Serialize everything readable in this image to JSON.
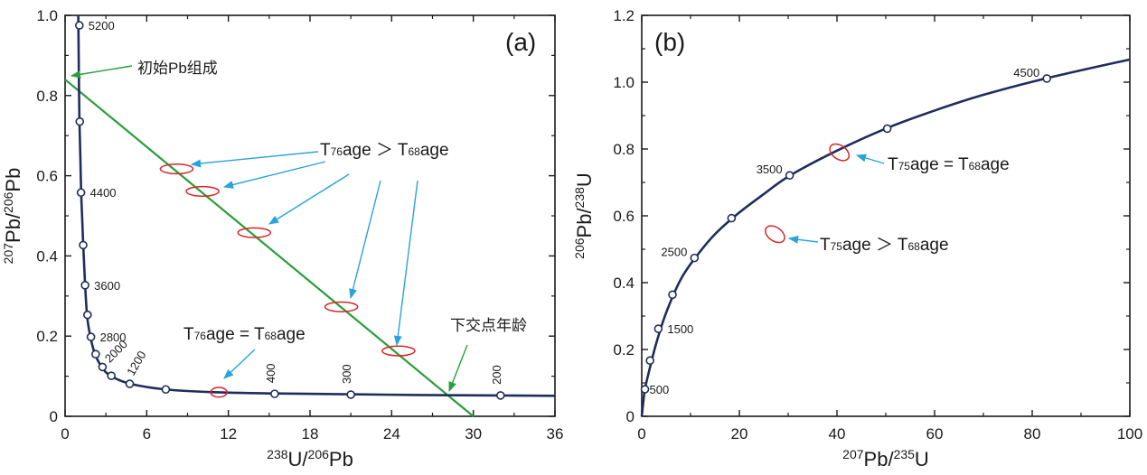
{
  "chart_data": [
    {
      "type": "line",
      "panel_label": "(a)",
      "xlabel": {
        "sup1": "238",
        "main1": "U/",
        "sup2": "206",
        "main2": "Pb"
      },
      "ylabel": {
        "sup1": "207",
        "main1": "Pb/",
        "sup2": "206",
        "main2": "Pb"
      },
      "xlim": [
        0,
        36
      ],
      "ylim": [
        0,
        1.0
      ],
      "xticks": [
        0,
        6,
        12,
        18,
        24,
        30,
        36
      ],
      "yticks": [
        0,
        0.2,
        0.4,
        0.6,
        0.8,
        1.0
      ],
      "ytick_labels": [
        "0",
        "0.2",
        "0.4",
        "0.6",
        "0.8",
        "1.0"
      ],
      "colors": {
        "concordia": "#1f2d5c",
        "discordia": "#2a9d3a",
        "ellipse": "#d62728",
        "arrow_blue": "#29a3db",
        "arrow_green": "#2a9d3a"
      },
      "concordia_curve": [
        [
          0.97,
          1.0
        ],
        [
          0.98,
          0.97
        ],
        [
          1.0,
          0.9
        ],
        [
          1.03,
          0.8
        ],
        [
          1.06,
          0.73
        ],
        [
          1.12,
          0.65
        ],
        [
          1.18,
          0.56
        ],
        [
          1.25,
          0.5
        ],
        [
          1.33,
          0.43
        ],
        [
          1.47,
          0.33
        ],
        [
          1.62,
          0.25
        ],
        [
          1.85,
          0.2
        ],
        [
          2.2,
          0.155
        ],
        [
          2.7,
          0.123
        ],
        [
          3.3,
          0.102
        ],
        [
          4.7,
          0.082
        ],
        [
          7.4,
          0.067
        ],
        [
          11.0,
          0.06
        ],
        [
          15.4,
          0.057
        ],
        [
          21.0,
          0.055
        ],
        [
          26.0,
          0.053
        ],
        [
          32.0,
          0.052
        ],
        [
          36.0,
          0.051
        ]
      ],
      "age_points": [
        {
          "x": 1.05,
          "y": 0.975,
          "label": "5200"
        },
        {
          "x": 1.08,
          "y": 0.735,
          "label": ""
        },
        {
          "x": 1.17,
          "y": 0.558,
          "label": "4400"
        },
        {
          "x": 1.33,
          "y": 0.427,
          "label": ""
        },
        {
          "x": 1.47,
          "y": 0.327,
          "label": "3600"
        },
        {
          "x": 1.65,
          "y": 0.253,
          "label": ""
        },
        {
          "x": 1.9,
          "y": 0.198,
          "label": "2800"
        },
        {
          "x": 2.25,
          "y": 0.155,
          "label": ""
        },
        {
          "x": 2.75,
          "y": 0.123,
          "label": "2000"
        },
        {
          "x": 3.4,
          "y": 0.101,
          "label": ""
        },
        {
          "x": 4.75,
          "y": 0.081,
          "label": "1200"
        },
        {
          "x": 7.4,
          "y": 0.067,
          "label": ""
        },
        {
          "x": 15.4,
          "y": 0.056,
          "label": "400"
        },
        {
          "x": 21.0,
          "y": 0.054,
          "label": "300"
        },
        {
          "x": 32.0,
          "y": 0.052,
          "label": "200"
        }
      ],
      "discordia": [
        [
          0,
          0.84
        ],
        [
          30.0,
          0.0
        ]
      ],
      "ellipses": [
        {
          "x": 8.2,
          "y": 0.617,
          "rx": 1.2,
          "ry": 0.012
        },
        {
          "x": 10.1,
          "y": 0.561,
          "rx": 1.2,
          "ry": 0.012
        },
        {
          "x": 13.9,
          "y": 0.458,
          "rx": 1.2,
          "ry": 0.012
        },
        {
          "x": 20.3,
          "y": 0.273,
          "rx": 1.2,
          "ry": 0.012
        },
        {
          "x": 24.5,
          "y": 0.163,
          "rx": 1.2,
          "ry": 0.012
        },
        {
          "x": 11.3,
          "y": 0.06,
          "rx": 0.6,
          "ry": 0.012
        }
      ],
      "annotations": {
        "t76_gt": {
          "T": "T",
          "sub1": "76",
          "mid": "age ＞ T",
          "sub2": "68",
          "tail": "age"
        },
        "t76_eq": {
          "T": "T",
          "sub1": "76",
          "mid": "age = T",
          "sub2": "68",
          "tail": "age"
        },
        "initial_pb": "初始Pb组成",
        "lower_intercept": "下交点年龄"
      }
    },
    {
      "type": "line",
      "panel_label": "(b)",
      "xlabel": {
        "sup1": "207",
        "main1": "Pb/",
        "sup2": "235",
        "main2": "U"
      },
      "ylabel": {
        "sup1": "206",
        "main1": "Pb/",
        "sup2": "238",
        "main2": "U"
      },
      "xlim": [
        0,
        100
      ],
      "ylim": [
        0,
        1.2
      ],
      "xticks": [
        0,
        20,
        40,
        60,
        80,
        100
      ],
      "yticks": [
        0,
        0.2,
        0.4,
        0.6,
        0.8,
        1.0,
        1.2
      ],
      "ytick_labels": [
        "0",
        "0.2",
        "0.4",
        "0.6",
        "0.8",
        "1.0",
        "1.2"
      ],
      "colors": {
        "concordia": "#1f2d5c",
        "ellipse": "#d62728",
        "arrow_blue": "#29a3db"
      },
      "concordia_curve": [
        [
          0,
          0.0
        ],
        [
          0.3,
          0.04
        ],
        [
          0.65,
          0.081
        ],
        [
          1.5,
          0.135
        ],
        [
          3.0,
          0.22
        ],
        [
          5.0,
          0.31
        ],
        [
          8.0,
          0.41
        ],
        [
          11.0,
          0.475
        ],
        [
          15.0,
          0.545
        ],
        [
          20.0,
          0.61
        ],
        [
          25.0,
          0.665
        ],
        [
          30.3,
          0.72
        ],
        [
          40.0,
          0.795
        ],
        [
          50.0,
          0.861
        ],
        [
          60.0,
          0.915
        ],
        [
          70.0,
          0.962
        ],
        [
          83.0,
          1.012
        ],
        [
          100.0,
          1.068
        ]
      ],
      "age_points": [
        {
          "x": 0.65,
          "y": 0.081,
          "label": "500"
        },
        {
          "x": 1.7,
          "y": 0.167,
          "label": ""
        },
        {
          "x": 3.4,
          "y": 0.262,
          "label": "1500"
        },
        {
          "x": 6.3,
          "y": 0.364,
          "label": ""
        },
        {
          "x": 10.8,
          "y": 0.474,
          "label": "2500"
        },
        {
          "x": 18.4,
          "y": 0.593,
          "label": ""
        },
        {
          "x": 30.3,
          "y": 0.721,
          "label": "3500"
        },
        {
          "x": 50.3,
          "y": 0.861,
          "label": ""
        },
        {
          "x": 83.0,
          "y": 1.011,
          "label": "4500"
        }
      ],
      "ellipses": [
        {
          "x": 40.5,
          "y": 0.79,
          "rx": 1.4,
          "ry": 0.032,
          "rot": -55
        },
        {
          "x": 27.3,
          "y": 0.545,
          "rx": 1.4,
          "ry": 0.032,
          "rot": -55
        }
      ],
      "annotations": {
        "t75_eq": {
          "T": "T",
          "sub1": "75",
          "mid": "age = T",
          "sub2": "68",
          "tail": "age"
        },
        "t75_gt": {
          "T": "T",
          "sub1": "75",
          "mid": "age ＞ T",
          "sub2": "68",
          "tail": "age"
        }
      }
    }
  ]
}
